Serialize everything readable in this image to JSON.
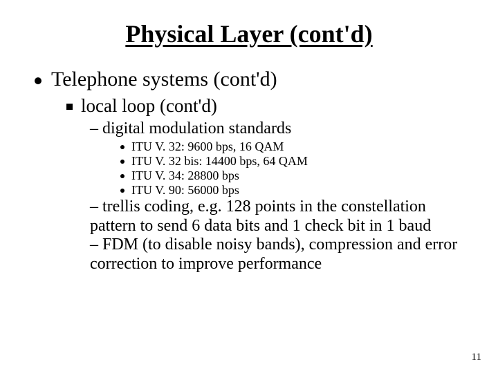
{
  "slide": {
    "title": "Physical Layer (cont'd)",
    "page_number": "11",
    "colors": {
      "text": "#000000",
      "background": "#ffffff"
    },
    "typography": {
      "title_fontsize": 36,
      "lvl1_fontsize": 30,
      "lvl2_fontsize": 27,
      "lvl3_fontsize": 24,
      "lvl4_fontsize": 18,
      "pagenum_fontsize": 15,
      "font_family": "Times New Roman"
    },
    "bullets": {
      "lvl1": {
        "text": "Telephone systems (cont'd)"
      },
      "lvl2": {
        "text": "local loop (cont'd)"
      },
      "lvl3_a": {
        "text": "– digital modulation standards"
      },
      "lvl4_items": [
        {
          "text": "ITU V. 32: 9600 bps, 16 QAM"
        },
        {
          "text": "ITU V. 32 bis: 14400 bps, 64 QAM"
        },
        {
          "text": "ITU V. 34: 28800 bps"
        },
        {
          "text": "ITU V. 90: 56000 bps"
        }
      ],
      "lvl3_b": {
        "text": "– trellis coding, e.g. 128 points in the constellation pattern to send 6 data bits and 1 check bit in 1 baud"
      },
      "lvl3_c": {
        "text": "– FDM (to disable noisy bands), compression and error correction to improve performance"
      }
    }
  }
}
